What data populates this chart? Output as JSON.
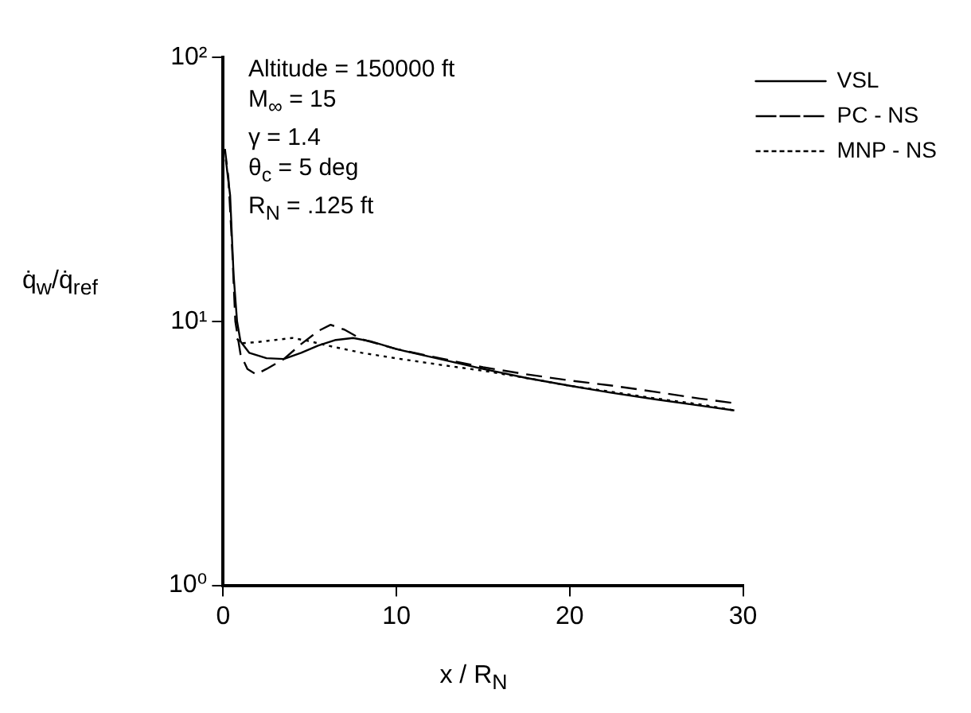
{
  "chart_data": {
    "type": "line",
    "xlabel": "x / R$_{N}$",
    "ylabel": "q̇$_{w}$/q̇$_{ref}$",
    "annotations": [
      "Altitude = 150000 ft",
      "M$_{∞}$ = 15",
      "γ = 1.4",
      "θ$_{c}$ = 5 deg",
      "R$_{N}$ = .125 ft"
    ],
    "xlim": [
      0,
      30
    ],
    "xticks": [
      0,
      10,
      20,
      30
    ],
    "ylim": [
      1,
      100
    ],
    "yticks": [
      {
        "value": 1,
        "label": "10⁰"
      },
      {
        "value": 10,
        "label": "10¹"
      },
      {
        "value": 100,
        "label": "10²"
      }
    ],
    "log": "y",
    "grid": false,
    "legend": "top right",
    "marker": "none",
    "series": [
      {
        "name": "VSL",
        "color": "#000000",
        "line_style": "solid",
        "x": [
          0.15,
          0.4,
          0.6,
          0.8,
          1,
          1.5,
          2.5,
          3.5,
          4.5,
          5.5,
          6.5,
          7.5,
          8.5,
          10,
          12.5,
          15,
          17.5,
          20,
          22.5,
          25,
          27.5,
          29.5
        ],
        "values": [
          41,
          30,
          15,
          10,
          8.4,
          7.6,
          7.25,
          7.2,
          7.6,
          8.1,
          8.5,
          8.65,
          8.4,
          7.85,
          7.2,
          6.6,
          6.1,
          5.7,
          5.35,
          5.06,
          4.8,
          4.6
        ]
      },
      {
        "name": "PC - NS",
        "color": "#000000",
        "line_style": "dashed",
        "x": [
          0.1,
          0.3,
          0.5,
          0.7,
          1,
          1.4,
          1.9,
          2.5,
          3.5,
          4.5,
          5.5,
          6.2,
          7,
          8,
          10,
          12.5,
          15,
          17.5,
          20,
          22.5,
          25,
          27.5,
          29.5
        ],
        "values": [
          45,
          35,
          20,
          10,
          7.5,
          6.6,
          6.3,
          6.6,
          7.2,
          8.2,
          9.2,
          9.7,
          9.3,
          8.55,
          7.85,
          7.25,
          6.7,
          6.3,
          5.97,
          5.7,
          5.4,
          5.1,
          4.9
        ]
      },
      {
        "name": "MNP - NS",
        "color": "#000000",
        "line_style": "dotted",
        "x": [
          0.8,
          1,
          2,
          3,
          4,
          5,
          6,
          8,
          10,
          12.5,
          15,
          17.5,
          20,
          22.5,
          25,
          27.5,
          29.5
        ],
        "values": [
          8.6,
          8.25,
          8.35,
          8.5,
          8.65,
          8.4,
          8.1,
          7.6,
          7.24,
          6.85,
          6.5,
          6.1,
          5.7,
          5.4,
          5.1,
          4.85,
          4.6
        ]
      }
    ]
  }
}
